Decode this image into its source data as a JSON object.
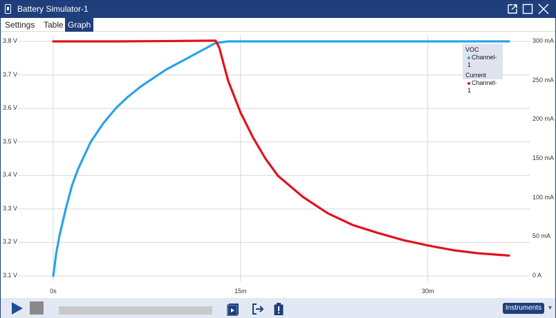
{
  "window": {
    "title": "Battery Simulator-1"
  },
  "tabs": [
    {
      "label": "Settings",
      "active": false
    },
    {
      "label": "Table",
      "active": false
    },
    {
      "label": "Graph",
      "active": true
    }
  ],
  "chart_data": {
    "type": "line",
    "x_ticks": [
      "0s",
      "15m",
      "30m"
    ],
    "xlim_minutes": [
      0,
      36.5
    ],
    "y_left": {
      "ticks": [
        "3.8 V",
        "3.7 V",
        "3.6 V",
        "3.5 V",
        "3.4 V",
        "3.3 V",
        "3.2 V",
        "3.1 V"
      ],
      "lim": [
        3.1,
        3.8
      ]
    },
    "y_right": {
      "ticks": [
        "300 mA",
        "250 mA",
        "200 mA",
        "150 mA",
        "100 mA",
        "50 mA",
        "0 A"
      ],
      "lim": [
        0,
        300
      ]
    },
    "grid": true,
    "legend_position": "top-right",
    "series": [
      {
        "group": "VOC",
        "name": "Channel-1",
        "axis": "left",
        "color": "#29a3e6",
        "x": [
          0,
          0.25,
          0.5,
          1,
          1.5,
          2,
          3,
          4,
          5,
          6,
          7,
          8,
          9,
          10,
          11,
          12,
          13,
          14,
          16,
          20,
          25,
          30,
          36.5
        ],
        "y": [
          3.1,
          3.17,
          3.22,
          3.3,
          3.37,
          3.42,
          3.5,
          3.555,
          3.6,
          3.635,
          3.665,
          3.69,
          3.715,
          3.735,
          3.755,
          3.775,
          3.795,
          3.8,
          3.8,
          3.8,
          3.8,
          3.8,
          3.8
        ]
      },
      {
        "group": "Current",
        "name": "Channel-1",
        "axis": "right",
        "color": "#e3111a",
        "x": [
          0,
          5,
          10,
          13,
          13.3,
          14,
          15,
          16,
          17,
          18,
          20,
          22,
          24,
          26,
          28,
          30,
          32,
          34,
          36.5
        ],
        "y": [
          300,
          300,
          300.5,
          301,
          292,
          250,
          209,
          177,
          150,
          128,
          101,
          80,
          65,
          55,
          46,
          39,
          33,
          29,
          26
        ]
      }
    ]
  },
  "toolbar": {
    "play_icon": "play-icon",
    "stop_icon": "stop-icon",
    "instruments_label": "Instruments"
  }
}
